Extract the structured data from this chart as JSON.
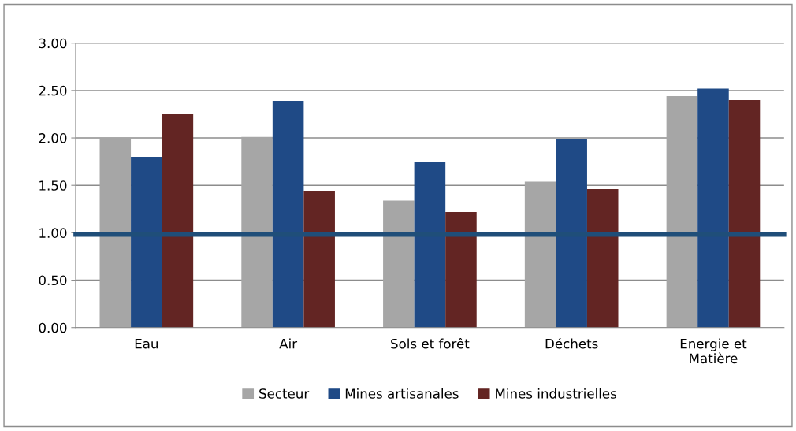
{
  "chart_data": {
    "type": "bar",
    "categories": [
      "Eau",
      "Air",
      "Sols et forêt",
      "Déchets",
      "Energie et\nMatière"
    ],
    "series": [
      {
        "name": "Secteur",
        "color": "#a6a6a6",
        "values": [
          2.0,
          2.01,
          1.34,
          1.54,
          2.44
        ]
      },
      {
        "name": "Mines artisanales",
        "color": "#1f4a86",
        "values": [
          1.8,
          2.39,
          1.75,
          1.99,
          2.52
        ]
      },
      {
        "name": "Mines industrielles",
        "color": "#632523",
        "values": [
          2.25,
          1.44,
          1.22,
          1.46,
          2.4
        ]
      }
    ],
    "ylim": [
      0,
      3
    ],
    "yticks": [
      {
        "value": 0,
        "label": "0.00"
      },
      {
        "value": 0.5,
        "label": "0.50"
      },
      {
        "value": 1,
        "label": "1.00"
      },
      {
        "value": 1.5,
        "label": "1.50"
      },
      {
        "value": 2,
        "label": "2.00"
      },
      {
        "value": 2.5,
        "label": "2.50"
      },
      {
        "value": 3,
        "label": "3.00"
      }
    ],
    "ref_lines": [
      {
        "axis": "y",
        "value": 0.98,
        "color": "#1f4e79"
      }
    ],
    "grid": "y",
    "legend": "bottom"
  }
}
